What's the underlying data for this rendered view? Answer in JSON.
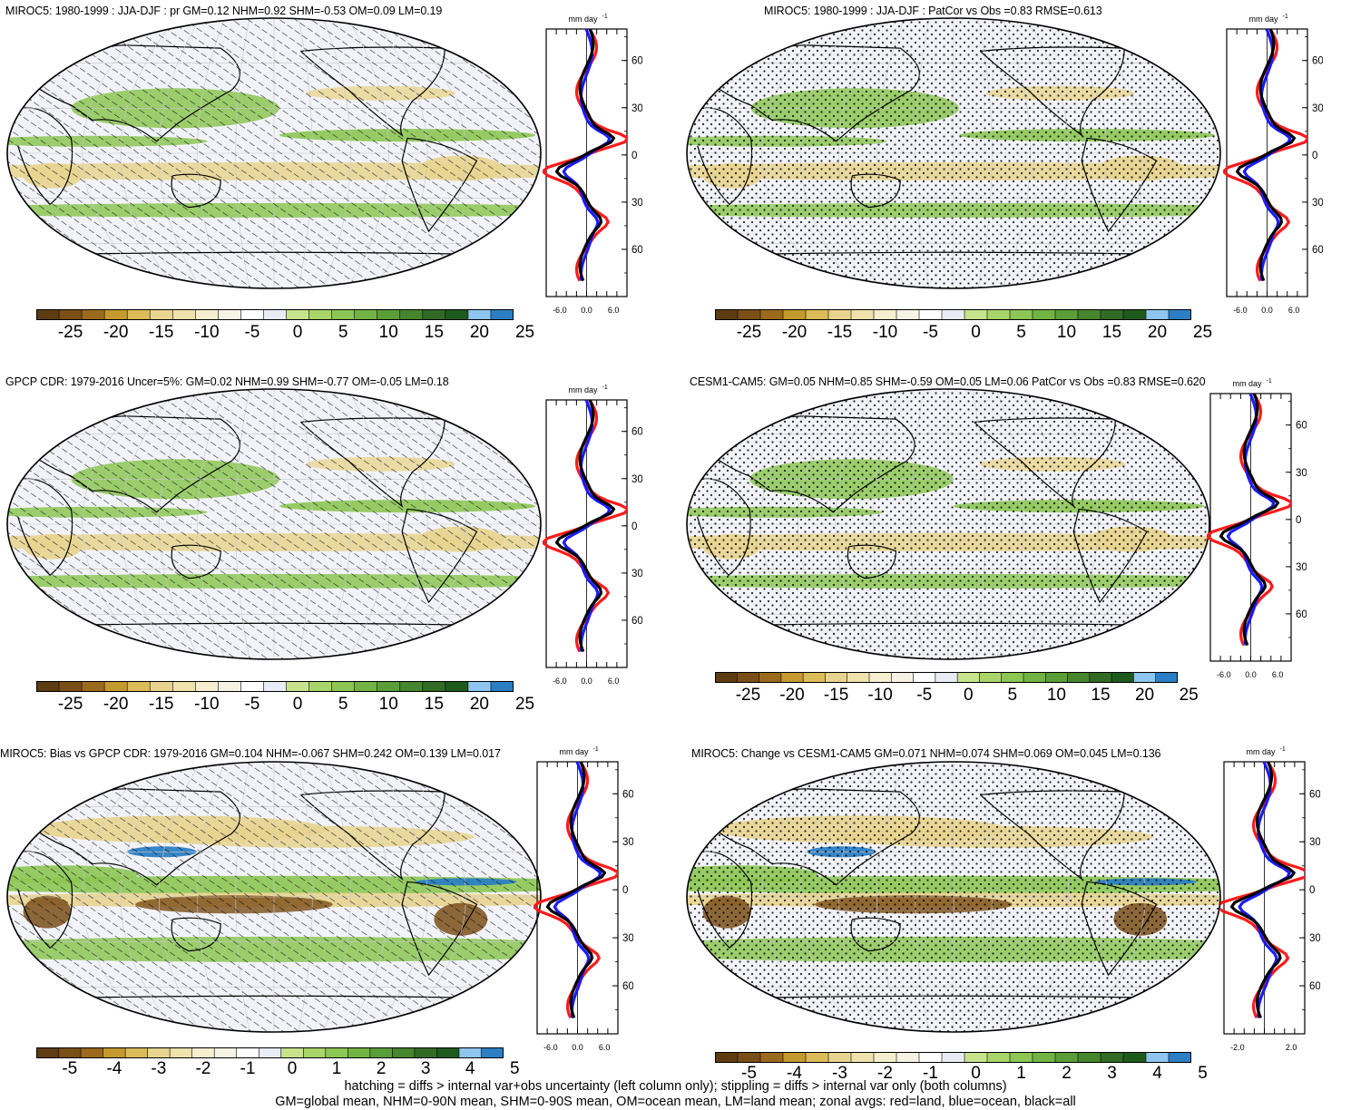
{
  "panels": [
    {
      "id": "p1",
      "title": "MIROC5: 1980-1999 : JJA-DJF : pr GM=0.12 NHM=0.92 SHM=-0.53 OM=0.09 LM=0.19",
      "pattern": "hatch",
      "palette": "precip",
      "zonal_unit": "mm day",
      "zonal_unit_sup": "-1",
      "zonal_xticks": [
        "-6.0",
        "0.0",
        "6.0"
      ],
      "lat_labels": [
        "60N",
        "30N",
        "0",
        "30S",
        "60S"
      ],
      "cbar_labels": [
        "-25",
        "-20",
        "-15",
        "-10",
        "-5",
        "0",
        "5",
        "10",
        "15",
        "20",
        "25"
      ]
    },
    {
      "id": "p2",
      "title": "MIROC5: 1980-1999 : JJA-DJF : PatCor vs Obs =0.83 RMSE=0.613",
      "pattern": "stipple",
      "palette": "precip",
      "zonal_unit": "mm day",
      "zonal_unit_sup": "-1",
      "zonal_xticks": [
        "-6.0",
        "0.0",
        "6.0"
      ],
      "lat_labels": [
        "60N",
        "30N",
        "0",
        "30S",
        "60S"
      ],
      "cbar_labels": [
        "-25",
        "-20",
        "-15",
        "-10",
        "-5",
        "0",
        "5",
        "10",
        "15",
        "20",
        "25"
      ]
    },
    {
      "id": "p3",
      "title": "GPCP CDR: 1979-2016 Uncer=5%: GM=0.02 NHM=0.99 SHM=-0.77 OM=-0.05 LM=0.18",
      "pattern": "hatch",
      "palette": "precip",
      "zonal_unit": "mm day",
      "zonal_unit_sup": "-1",
      "zonal_xticks": [
        "-6.0",
        "0.0",
        "6.0"
      ],
      "lat_labels": [
        "60N",
        "30N",
        "0",
        "30S",
        "60S"
      ],
      "cbar_labels": [
        "-25",
        "-20",
        "-15",
        "-10",
        "-5",
        "0",
        "5",
        "10",
        "15",
        "20",
        "25"
      ]
    },
    {
      "id": "p4",
      "title": "CESM1-CAM5: GM=0.05 NHM=0.85 SHM=-0.59 OM=0.05 LM=0.06 PatCor vs Obs =0.83 RMSE=0.620",
      "pattern": "stipple",
      "palette": "precip",
      "zonal_unit": "mm day",
      "zonal_unit_sup": "-1",
      "zonal_xticks": [
        "-6.0",
        "0.0",
        "6.0"
      ],
      "lat_labels": [
        "60N",
        "30N",
        "0",
        "30S",
        "60S"
      ],
      "cbar_labels": [
        "-25",
        "-20",
        "-15",
        "-10",
        "-5",
        "0",
        "5",
        "10",
        "15",
        "20",
        "25"
      ]
    },
    {
      "id": "p5",
      "title": "MIROC5: Bias vs GPCP CDR: 1979-2016 GM=0.104 NHM=-0.067 SHM=0.242 OM=0.139 LM=0.017",
      "pattern": "hatch",
      "palette": "bias",
      "zonal_unit": "mm day",
      "zonal_unit_sup": "-1",
      "zonal_xticks": [
        "-6.0",
        "0.0",
        "6.0"
      ],
      "lat_labels": [
        "60N",
        "30N",
        "0",
        "30S",
        "60S"
      ],
      "cbar_labels": [
        "-5",
        "-4",
        "-3",
        "-2",
        "-1",
        "0",
        "1",
        "2",
        "3",
        "4",
        "5"
      ]
    },
    {
      "id": "p6",
      "title": "MIROC5: Change vs CESM1-CAM5 GM=0.071 NHM=0.074 SHM=0.069 OM=0.045 LM=0.136",
      "pattern": "stipple",
      "palette": "bias",
      "zonal_unit": "mm day",
      "zonal_unit_sup": "-1",
      "zonal_xticks": [
        "-2.0",
        "2.0"
      ],
      "lat_labels": [
        "60N",
        "30N",
        "0",
        "30S",
        "60S"
      ],
      "cbar_labels": [
        "-5",
        "-4",
        "-3",
        "-2",
        "-1",
        "0",
        "1",
        "2",
        "3",
        "4",
        "5"
      ]
    }
  ],
  "colorbar_colors": [
    "#5e3c11",
    "#7a4e17",
    "#9c6a1d",
    "#c49a2f",
    "#dbbc59",
    "#e8d48f",
    "#efe2ad",
    "#f5efcf",
    "#f7f3e4",
    "#ffffff",
    "#e9ecf5",
    "#c6e38b",
    "#a8d56a",
    "#8cc653",
    "#72b444",
    "#5a9e38",
    "#46862e",
    "#316b25",
    "#1f5a1d",
    "#8ec6ef",
    "#2c7fc4"
  ],
  "map_colors": {
    "ocean_bg": "#f2f3f9",
    "land_line": "#000000",
    "wet": "#8cc653",
    "very_wet": "#46862e",
    "dry": "#e8d48f",
    "very_dry": "#7a4e17",
    "blue": "#2c7fc4"
  },
  "zonal_colors": {
    "land": "#ff1a1a",
    "ocean": "#1a1aff",
    "all": "#000000"
  },
  "footnote": {
    "line1": "hatching = diffs > internal var+obs uncertainty (left column only); stippling = diffs > internal var only (both columns)",
    "line2": "GM=global mean, NHM=0-90N mean, SHM=0-90S mean, OM=ocean mean, LM=land mean; zonal avgs: red=land, blue=ocean, black=all"
  }
}
